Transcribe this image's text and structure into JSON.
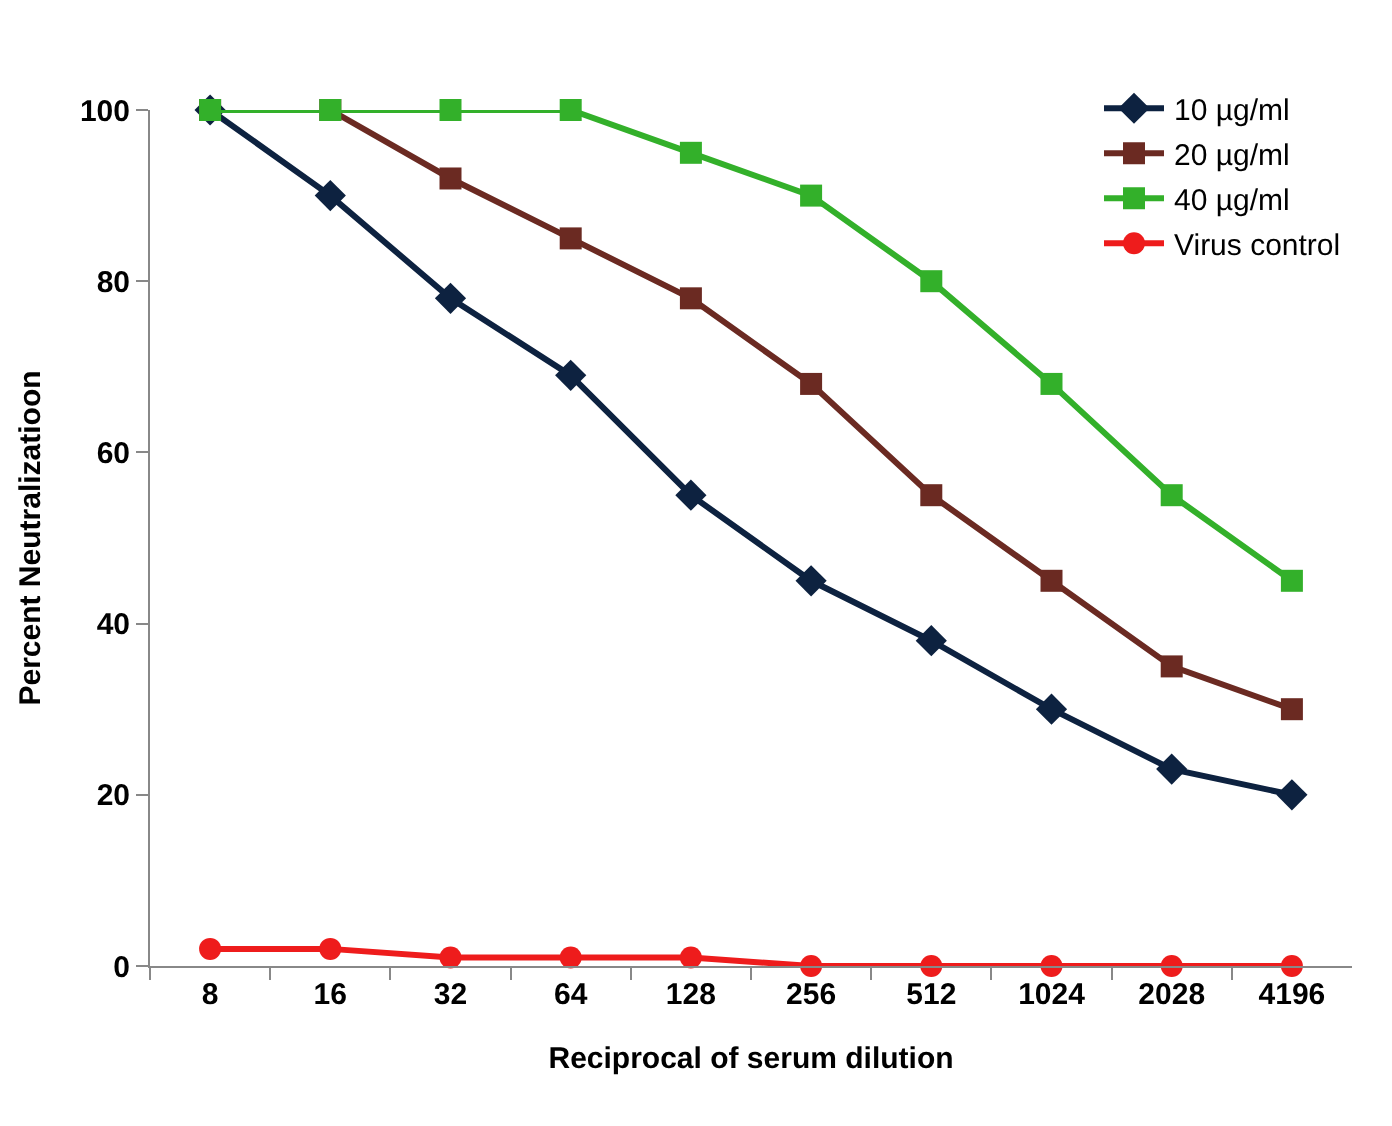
{
  "chart_data": {
    "type": "line",
    "xlabel": "Reciprocal of serum dilution",
    "ylabel": "Percent Neutralizatioon",
    "categories": [
      "8",
      "16",
      "32",
      "64",
      "128",
      "256",
      "512",
      "1024",
      "2028",
      "4196"
    ],
    "series": [
      {
        "name": "10 µg/ml",
        "color": "#0d2240",
        "marker": "diamond",
        "values": [
          100,
          90,
          78,
          69,
          55,
          45,
          38,
          30,
          23,
          20
        ]
      },
      {
        "name": "20 µg/ml",
        "color": "#6b2a22",
        "marker": "square",
        "values": [
          100,
          100,
          92,
          85,
          78,
          68,
          55,
          45,
          35,
          30
        ]
      },
      {
        "name": "40 µg/ml",
        "color": "#33b02a",
        "marker": "square",
        "values": [
          100,
          100,
          100,
          100,
          95,
          90,
          80,
          68,
          55,
          45
        ]
      },
      {
        "name": "Virus control",
        "color": "#ee1c1c",
        "marker": "circle",
        "values": [
          2,
          2,
          1,
          1,
          1,
          0,
          0,
          0,
          0,
          0
        ]
      }
    ],
    "ylim": [
      0,
      100
    ],
    "yticks": [
      0,
      20,
      40,
      60,
      80,
      100
    ],
    "legend": "top right",
    "line_style": "solid"
  }
}
